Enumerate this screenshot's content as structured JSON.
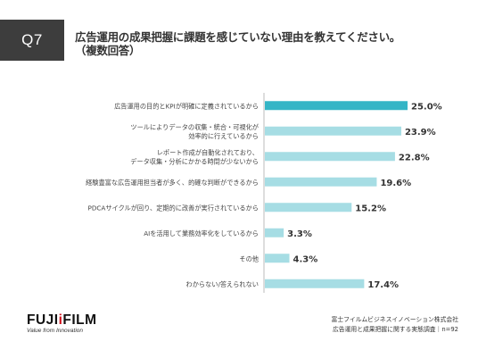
{
  "question": {
    "badge": "Q7",
    "title_line1": "広告運用の成果把握に課題を感じていない理由を教えてください。",
    "title_line2": "（複数回答）"
  },
  "chart_data": {
    "type": "bar",
    "orientation": "horizontal",
    "categories": [
      [
        "広告運用の目的とKPIが明確に定義されているから"
      ],
      [
        "ツールによりデータの収集・統合・可視化が",
        "効率的に行えているから"
      ],
      [
        "レポート作成が自動化されており、",
        "データ収集・分析にかかる時間が少ないから"
      ],
      [
        "経験豊富な広告運用担当者が多く、的確な判断ができるから"
      ],
      [
        "PDCAサイクルが回り、定期的に改善が実行されているから"
      ],
      [
        "AIを活用して業務効率化をしているから"
      ],
      [
        "その他"
      ],
      [
        "わからない/答えられない"
      ]
    ],
    "values": [
      25.0,
      23.9,
      22.8,
      19.6,
      15.2,
      3.3,
      4.3,
      17.4
    ],
    "value_labels": [
      "25.0%",
      "23.9%",
      "22.8%",
      "19.6%",
      "15.2%",
      "3.3%",
      "4.3%",
      "17.4%"
    ],
    "xlim": [
      0,
      25
    ],
    "colors": {
      "highlight": "#35b5c6",
      "bar": "#a6dde4",
      "axis": "#bbbbbb"
    }
  },
  "footer": {
    "logo_left": "FUJI",
    "logo_mid": "i",
    "logo_right": "FILM",
    "logo_tagline": "Value from Innovation",
    "source_line1": "富士フイルムビジネスイノベーション株式会社",
    "source_line2": "広告運用と成果把握に関する実態調査｜n=92"
  }
}
